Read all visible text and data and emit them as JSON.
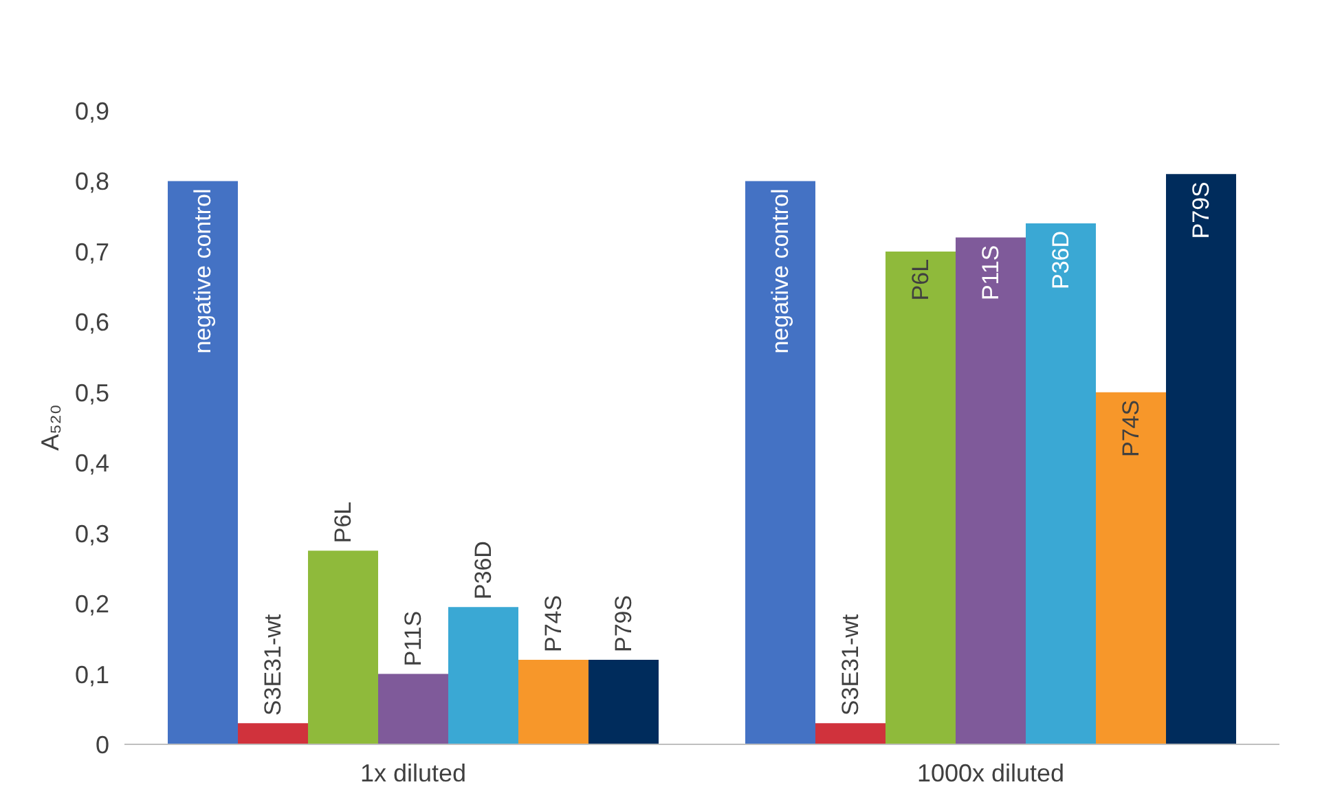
{
  "chart_data": {
    "type": "bar",
    "categories": [
      "1x diluted",
      "1000x diluted"
    ],
    "ylabel": "A₅₂₀",
    "ylim": [
      0,
      0.9
    ],
    "yticks": [
      0,
      {
        "value": 0.1,
        "label": "0,1"
      },
      {
        "value": 0.2,
        "label": "0,2"
      },
      {
        "value": 0.3,
        "label": "0,3"
      },
      {
        "value": 0.4,
        "label": "0,4"
      },
      {
        "value": 0.5,
        "label": "0,5"
      },
      {
        "value": 0.6,
        "label": "0,6"
      },
      {
        "value": 0.7,
        "label": "0,7"
      },
      {
        "value": 0.8,
        "label": "0,8"
      },
      {
        "value": 0.9,
        "label": "0,9"
      }
    ],
    "grid": false,
    "legend": false,
    "series": [
      {
        "name": "negative control",
        "color": "#4472c4",
        "values": [
          0.8,
          0.8
        ]
      },
      {
        "name": "S3E31-wt",
        "color": "#d0323c",
        "values": [
          0.03,
          0.03
        ]
      },
      {
        "name": "P6L",
        "color": "#8fba3b",
        "values": [
          0.275,
          0.7
        ]
      },
      {
        "name": "P11S",
        "color": "#7f5a9a",
        "values": [
          0.1,
          0.72
        ]
      },
      {
        "name": "P36D",
        "color": "#3aa8d4",
        "values": [
          0.195,
          0.74
        ]
      },
      {
        "name": "P74S",
        "color": "#f7972a",
        "values": [
          0.12,
          0.5
        ]
      },
      {
        "name": "P79S",
        "color": "#002c5c",
        "values": [
          0.12,
          0.81
        ]
      }
    ]
  }
}
